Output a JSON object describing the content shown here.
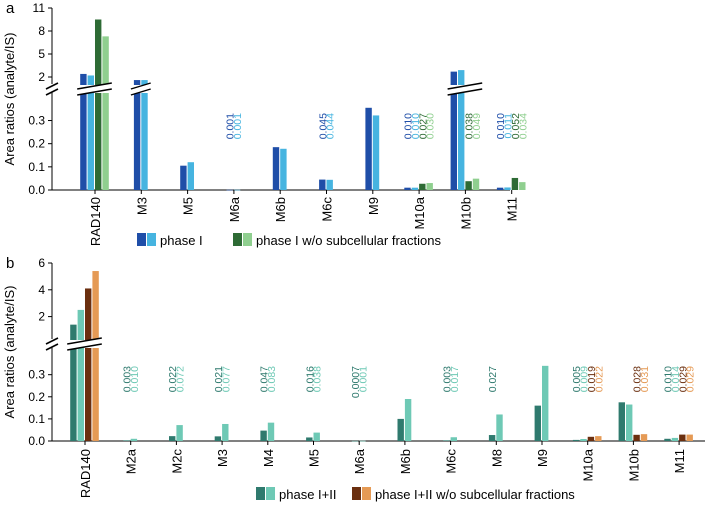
{
  "colors": {
    "phase1_dark": "#1f4ea8",
    "phase1_light": "#46b4e0",
    "wo_dark": "#2e6b35",
    "wo_light": "#8fcf8f",
    "phase12_dark": "#2f7a6e",
    "phase12_light": "#6ec9b5",
    "wo12_dark": "#6b2f0f",
    "wo12_light": "#e59a55"
  },
  "chart_data": [
    {
      "panel_label": "a",
      "type": "bar",
      "ylabel": "Area ratios (analyte/IS)",
      "lower_ticks": [
        "0.0",
        "0.1",
        "0.2",
        "0.3"
      ],
      "upper_ticks": [
        "2",
        "5",
        "8",
        "11"
      ],
      "lower_range": [
        0,
        0.38
      ],
      "upper_range": [
        2,
        11
      ],
      "categories": [
        "RAD140",
        "M3",
        "M5",
        "M6a",
        "M6b",
        "M6c",
        "M9",
        "M10a",
        "M10b",
        "M11"
      ],
      "series": [
        {
          "name": "phase I (dark)",
          "color_key": "phase1_dark",
          "values": [
            2.4,
            1.6,
            0.105,
            0.001,
            0.185,
            0.045,
            0.355,
            0.01,
            2.7,
            0.01
          ]
        },
        {
          "name": "phase I (light)",
          "color_key": "phase1_light",
          "values": [
            2.2,
            1.6,
            0.12,
            0.001,
            0.178,
            0.044,
            0.322,
            0.01,
            2.9,
            0.011
          ]
        },
        {
          "name": "phase I w/o subcellular fractions (dark)",
          "color_key": "wo_dark",
          "values": [
            9.5,
            null,
            null,
            null,
            null,
            null,
            null,
            0.027,
            0.038,
            0.052
          ]
        },
        {
          "name": "phase I w/o subcellular fractions (light)",
          "color_key": "wo_light",
          "values": [
            7.3,
            null,
            null,
            null,
            null,
            null,
            null,
            0.03,
            0.049,
            0.034
          ]
        }
      ],
      "data_labels": [
        {
          "cat": "M6a",
          "series": 0,
          "text": "0.001"
        },
        {
          "cat": "M6a",
          "series": 1,
          "text": "0.001"
        },
        {
          "cat": "M6c",
          "series": 0,
          "text": "0.045"
        },
        {
          "cat": "M6c",
          "series": 1,
          "text": "0.044"
        },
        {
          "cat": "M10a",
          "series": 0,
          "text": "0.010"
        },
        {
          "cat": "M10a",
          "series": 1,
          "text": "0.010"
        },
        {
          "cat": "M10a",
          "series": 2,
          "text": "0.027"
        },
        {
          "cat": "M10a",
          "series": 3,
          "text": "0.030"
        },
        {
          "cat": "M10b",
          "series": 2,
          "text": "0.038"
        },
        {
          "cat": "M10b",
          "series": 3,
          "text": "0.049"
        },
        {
          "cat": "M11",
          "series": 0,
          "text": "0.010"
        },
        {
          "cat": "M11",
          "series": 1,
          "text": "0.011"
        },
        {
          "cat": "M11",
          "series": 2,
          "text": "0.052"
        },
        {
          "cat": "M11",
          "series": 3,
          "text": "0.034"
        }
      ],
      "legend": [
        {
          "text": "phase I",
          "color_keys": [
            "phase1_dark",
            "phase1_light"
          ]
        },
        {
          "text": "phase I w/o subcellular fractions",
          "color_keys": [
            "wo_dark",
            "wo_light"
          ]
        }
      ]
    },
    {
      "panel_label": "b",
      "type": "bar",
      "ylabel": "Area ratios (analyte/IS)",
      "lower_ticks": [
        "0.0",
        "0.1",
        "0.2",
        "0.3"
      ],
      "upper_ticks": [
        "2",
        "4",
        "6"
      ],
      "lower_range": [
        0,
        0.38
      ],
      "upper_range": [
        1,
        6
      ],
      "categories": [
        "RAD140",
        "M2a",
        "M2c",
        "M3",
        "M4",
        "M5",
        "M6a",
        "M6b",
        "M6c",
        "M8",
        "M9",
        "M10a",
        "M10b",
        "M11"
      ],
      "series": [
        {
          "name": "phase I+II (dark)",
          "color_key": "phase12_dark",
          "values": [
            1.4,
            0.003,
            0.022,
            0.021,
            0.047,
            0.016,
            0.0007,
            0.1,
            0.003,
            0.027,
            0.16,
            0.005,
            0.175,
            0.01
          ]
        },
        {
          "name": "phase I+II (light)",
          "color_key": "phase12_light",
          "values": [
            2.5,
            0.01,
            0.072,
            0.077,
            0.083,
            0.038,
            0.001,
            0.19,
            0.017,
            0.12,
            0.34,
            0.009,
            0.165,
            0.014
          ]
        },
        {
          "name": "phase I+II w/o subcellular fractions (dark)",
          "color_key": "wo12_dark",
          "values": [
            4.1,
            null,
            null,
            null,
            null,
            null,
            null,
            null,
            null,
            null,
            null,
            0.019,
            0.028,
            0.029
          ]
        },
        {
          "name": "phase I+II w/o subcellular fractions (light)",
          "color_key": "wo12_light",
          "values": [
            5.4,
            null,
            null,
            null,
            null,
            null,
            null,
            null,
            null,
            null,
            null,
            0.022,
            0.031,
            0.029
          ]
        }
      ],
      "data_labels": [
        {
          "cat": "M2a",
          "series": 0,
          "text": "0.003"
        },
        {
          "cat": "M2a",
          "series": 1,
          "text": "0.010"
        },
        {
          "cat": "M2c",
          "series": 0,
          "text": "0.022"
        },
        {
          "cat": "M2c",
          "series": 1,
          "text": "0.072"
        },
        {
          "cat": "M3",
          "series": 0,
          "text": "0.021"
        },
        {
          "cat": "M3",
          "series": 1,
          "text": "0.077"
        },
        {
          "cat": "M4",
          "series": 0,
          "text": "0.047"
        },
        {
          "cat": "M4",
          "series": 1,
          "text": "0.083"
        },
        {
          "cat": "M5",
          "series": 0,
          "text": "0.016"
        },
        {
          "cat": "M5",
          "series": 1,
          "text": "0.038"
        },
        {
          "cat": "M6a",
          "series": 0,
          "text": "0.0007"
        },
        {
          "cat": "M6a",
          "series": 1,
          "text": "0.001"
        },
        {
          "cat": "M6c",
          "series": 0,
          "text": "0.003"
        },
        {
          "cat": "M6c",
          "series": 1,
          "text": "0.017"
        },
        {
          "cat": "M8",
          "series": 0,
          "text": "0.027"
        },
        {
          "cat": "M10a",
          "series": 0,
          "text": "0.005"
        },
        {
          "cat": "M10a",
          "series": 1,
          "text": "0.009"
        },
        {
          "cat": "M10a",
          "series": 2,
          "text": "0.019"
        },
        {
          "cat": "M10a",
          "series": 3,
          "text": "0.022"
        },
        {
          "cat": "M10b",
          "series": 2,
          "text": "0.028"
        },
        {
          "cat": "M10b",
          "series": 3,
          "text": "0.031"
        },
        {
          "cat": "M11",
          "series": 0,
          "text": "0.010"
        },
        {
          "cat": "M11",
          "series": 1,
          "text": "0.014"
        },
        {
          "cat": "M11",
          "series": 2,
          "text": "0.029"
        },
        {
          "cat": "M11",
          "series": 3,
          "text": "0.029"
        }
      ],
      "legend": [
        {
          "text": "phase I+II",
          "color_keys": [
            "phase12_dark",
            "phase12_light"
          ]
        },
        {
          "text": "phase I+II w/o subcellular fractions",
          "color_keys": [
            "wo12_dark",
            "wo12_light"
          ]
        }
      ]
    }
  ]
}
